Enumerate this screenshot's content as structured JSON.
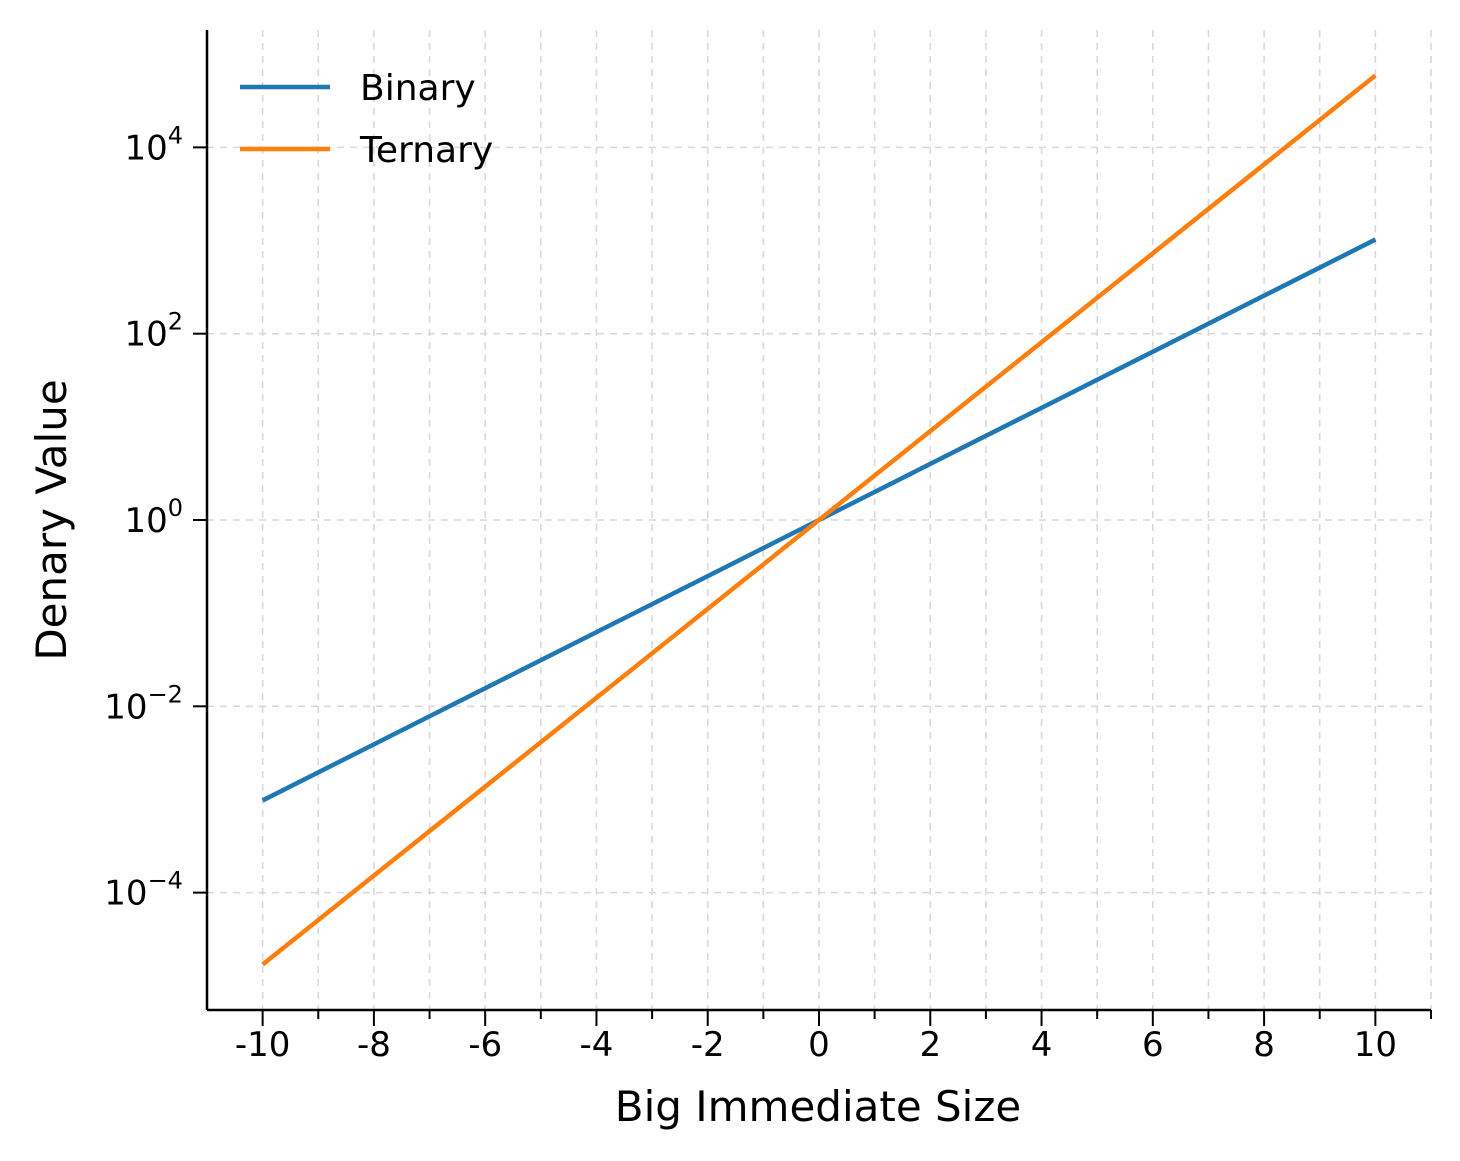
{
  "chart_data": {
    "type": "line",
    "xlabel": "Big Immediate Size",
    "ylabel": "Denary Value",
    "yscale": "log",
    "xlim": [
      -11,
      11
    ],
    "ylim_exponent": [
      -5.26,
      5.26
    ],
    "x_ticks": [
      -10,
      -8,
      -6,
      -4,
      -2,
      0,
      2,
      4,
      6,
      8,
      10
    ],
    "x_tick_labels": [
      "-10",
      "-8",
      "-6",
      "-4",
      "-2",
      "0",
      "2",
      "4",
      "6",
      "8",
      "10"
    ],
    "y_ticks": [
      0.0001,
      0.01,
      1,
      100,
      10000
    ],
    "y_tick_labels": [
      {
        "base": "10",
        "exp": "−4"
      },
      {
        "base": "10",
        "exp": "−2"
      },
      {
        "base": "10",
        "exp": "0"
      },
      {
        "base": "10",
        "exp": "2"
      },
      {
        "base": "10",
        "exp": "4"
      }
    ],
    "grid": true,
    "legend_position": "top-left",
    "x": [
      -10,
      -8,
      -6,
      -4,
      -2,
      0,
      2,
      4,
      6,
      8,
      10
    ],
    "series": [
      {
        "name": "Binary",
        "color": "#1f77b4",
        "values": [
          0.0009765625,
          0.00390625,
          0.015625,
          0.0625,
          0.25,
          1,
          4,
          16,
          64,
          256,
          1024
        ]
      },
      {
        "name": "Ternary",
        "color": "#ff7f0e",
        "values": [
          1.69351e-05,
          0.000152416,
          0.00137174,
          0.0123457,
          0.111111,
          1,
          9,
          81,
          729,
          6561,
          59049
        ]
      }
    ]
  }
}
